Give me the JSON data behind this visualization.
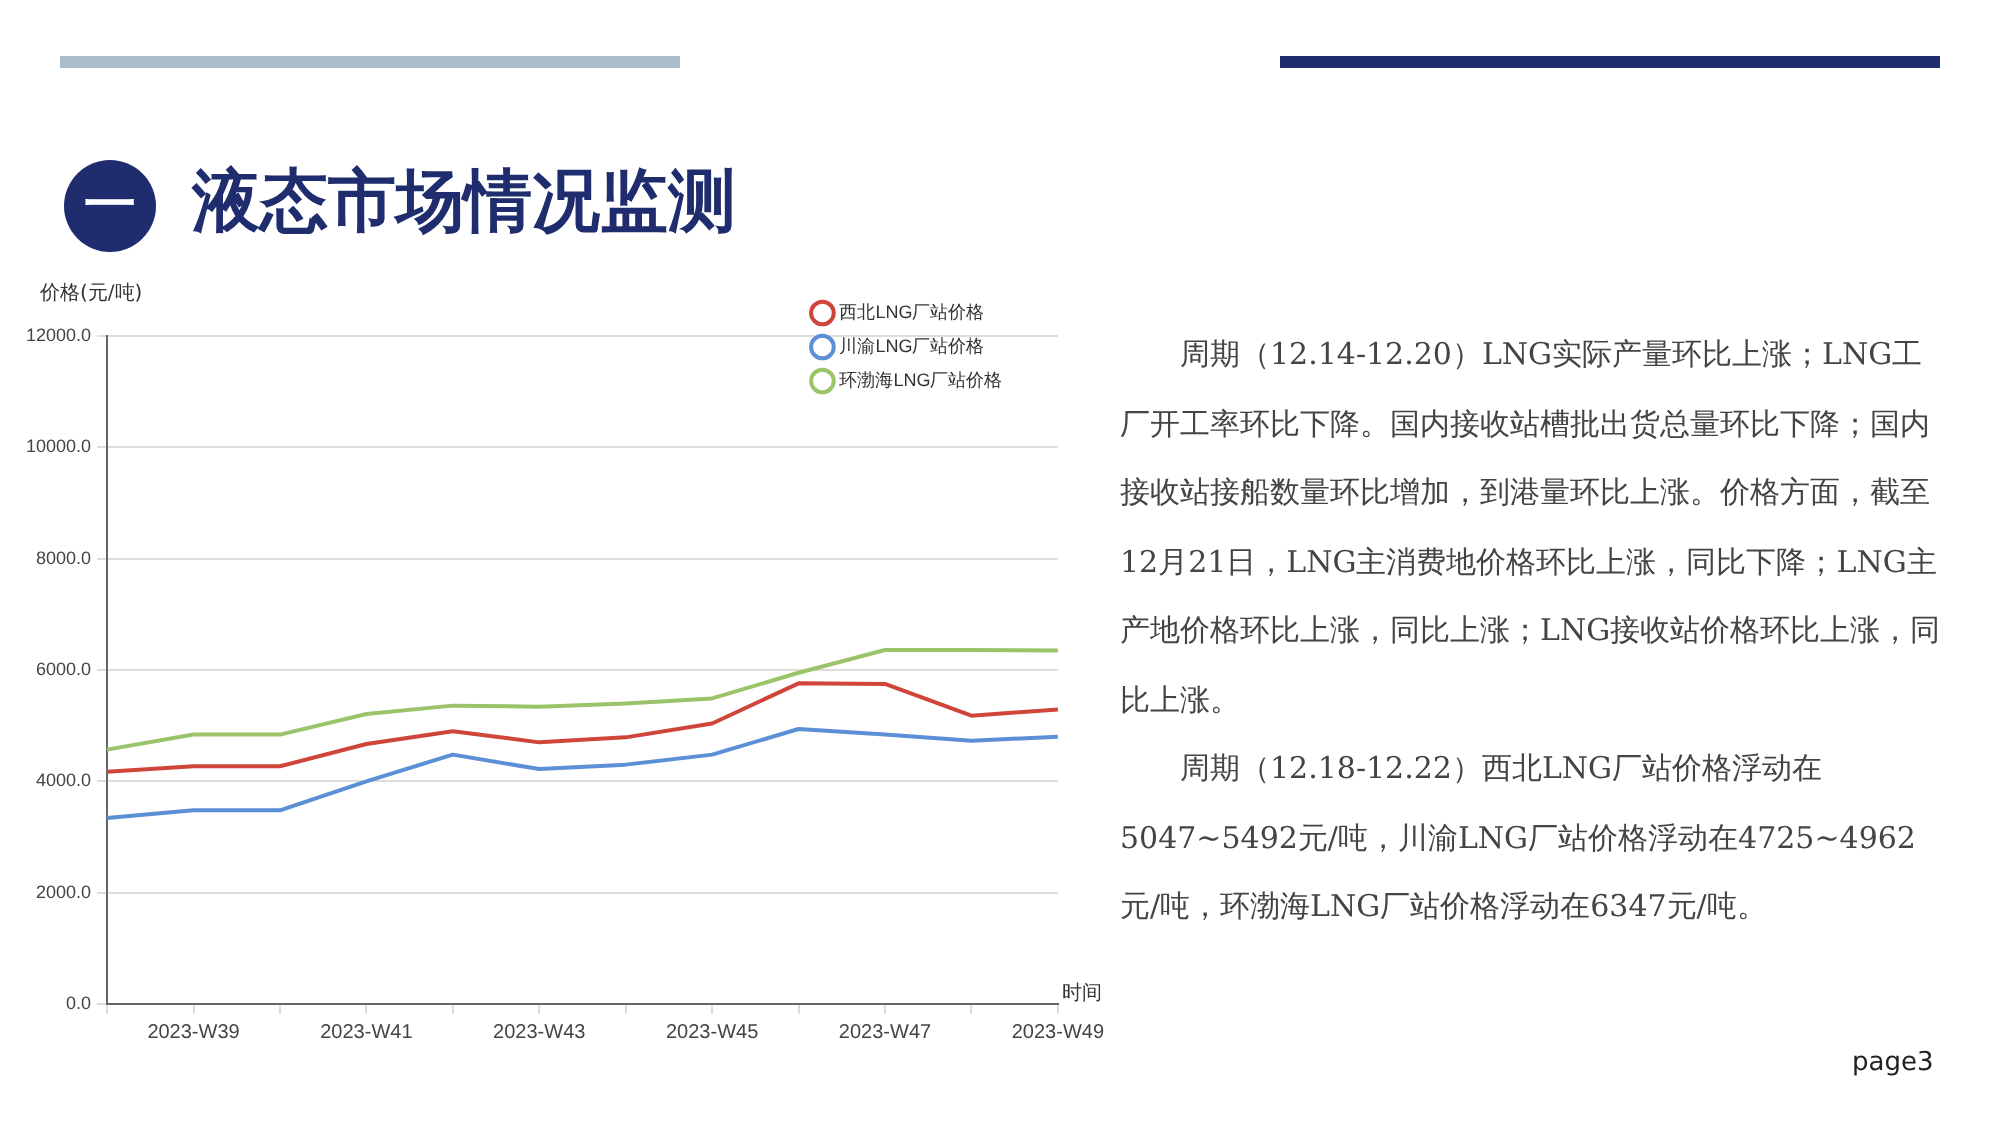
{
  "chart_data": {
    "type": "line",
    "title": "液态市场情况监测",
    "xlabel": "时间",
    "ylabel": "价格(元/吨)",
    "categories": [
      null,
      "2023-W39",
      null,
      "2023-W41",
      null,
      "2023-W43",
      null,
      "2023-W45",
      null,
      "2023-W47",
      null,
      "2023-W49"
    ],
    "series": [
      {
        "name": "西北LNG厂站价格",
        "color": "#d0453a",
        "values": [
          4170,
          4270,
          4270,
          4670,
          4900,
          4700,
          4790,
          5040,
          5760,
          5750,
          5180,
          5290
        ]
      },
      {
        "name": "川渝LNG厂站价格",
        "color": "#5b8fd6",
        "values": [
          3340,
          3480,
          3480,
          4000,
          4480,
          4220,
          4300,
          4480,
          4940,
          4840,
          4730,
          4800
        ]
      },
      {
        "name": "环渤海LNG厂站价格",
        "color": "#9bc46a",
        "values": [
          4570,
          4840,
          4840,
          5210,
          5360,
          5340,
          5400,
          5490,
          5950,
          6360,
          6360,
          6350
        ]
      }
    ],
    "ylim": [
      0,
      12000
    ],
    "yticks": [
      {
        "value": 0,
        "label": "0.0"
      },
      {
        "value": 2000,
        "label": "2000.0"
      },
      {
        "value": 4000,
        "label": "4000.0"
      },
      {
        "value": 6000,
        "label": "6000.0"
      },
      {
        "value": 8000,
        "label": "8000.0"
      },
      {
        "value": 10000,
        "label": "10000.0"
      },
      {
        "value": 12000,
        "label": "12000.0"
      }
    ],
    "grid": "y",
    "legend": "top right",
    "marker": "none",
    "line_style": "solid",
    "annotations": [
      "一",
      "周期（12.14-12.20）LNG实际产量环比上涨；LNG工厂开工率环比下降。国内接收站槽批出货总量环比下降；国内接收站接船数量环比增加，到港量环比上涨。价格方面，截至12月21日，LNG主消费地价格环比上涨，同比下降；LNG主产地价格环比上涨，同比上涨；LNG接收站价格环比上涨，同比上涨。",
      "周期（12.18-12.22）西北LNG厂站价格浮动在5047~5492元/吨，川渝LNG厂站价格浮动在4725~4962元/吨，环渤海LNG厂站价格浮动在6347元/吨。",
      "page3"
    ]
  }
}
